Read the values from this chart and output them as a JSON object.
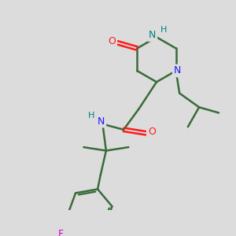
{
  "bg_color": "#dcdcdc",
  "bond_color": "#3a6b3a",
  "bond_width": 1.8,
  "N_color": "#1a1aff",
  "O_color": "#ff1a1a",
  "F_color": "#cc00cc",
  "H_color": "#008080",
  "figsize": [
    3.0,
    3.0
  ],
  "dpi": 100,
  "xlim": [
    0,
    300
  ],
  "ylim": [
    0,
    300
  ]
}
